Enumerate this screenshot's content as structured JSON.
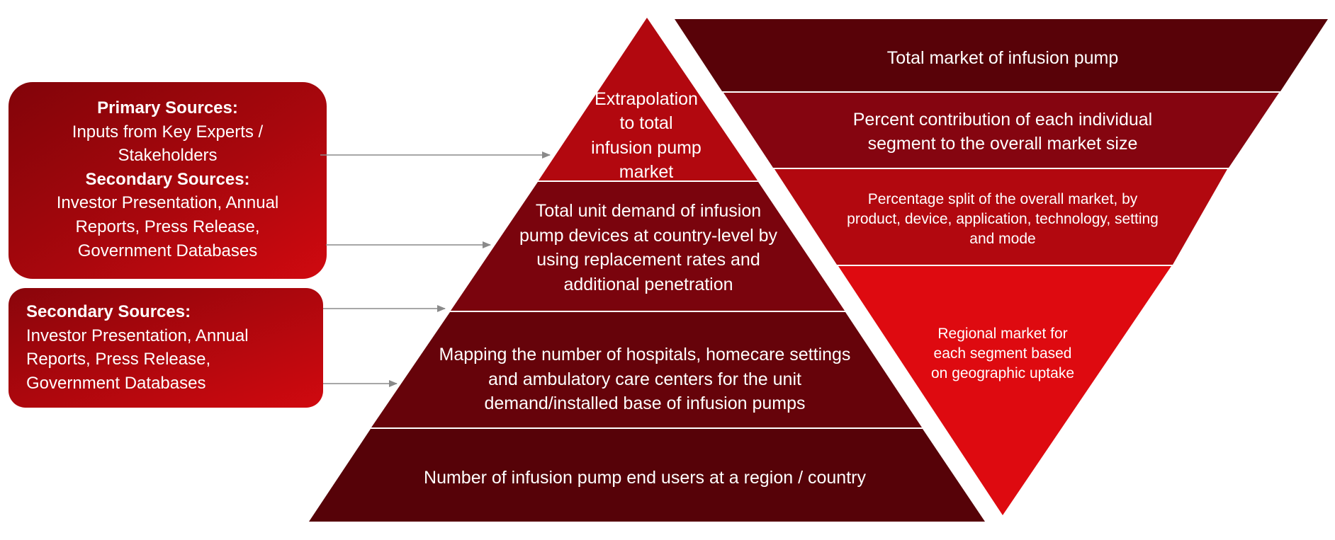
{
  "colors": {
    "dark": "#5a0308",
    "mid": "#7e0510",
    "bright": "#b5080f",
    "vivid": "#de0a10",
    "arrow": "#8a8a8a"
  },
  "left_boxes": {
    "box1": {
      "primary_title": "Primary Sources:",
      "primary_lines": [
        "Inputs from Key Experts /",
        "Stakeholders"
      ],
      "secondary_title": "Secondary Sources:",
      "secondary_lines": [
        "Investor Presentation, Annual",
        "Reports, Press Release,",
        "Government Databases"
      ]
    },
    "box2": {
      "secondary_title": "Secondary Sources:",
      "secondary_lines": [
        "Investor Presentation, Annual",
        "Reports, Press Release,",
        "Government Databases"
      ]
    }
  },
  "pyramid": {
    "tier1": [
      "Extrapolation",
      "to total",
      "infusion pump",
      "market"
    ],
    "tier2": [
      "Total unit demand of infusion",
      "pump devices at country-level by",
      "using replacement rates and",
      "additional penetration"
    ],
    "tier3": [
      "Mapping the number of hospitals, homecare settings",
      "and ambulatory care centers for the unit",
      "demand/installed base of infusion pumps"
    ],
    "tier4": [
      "Number of infusion pump end users at a region / country"
    ]
  },
  "inverted": {
    "tier1": [
      "Total market of infusion pump"
    ],
    "tier2": [
      "Percent contribution of each individual",
      "segment to the overall market size"
    ],
    "tier3": [
      "Percentage split of the overall market, by",
      "product, device, application, technology, setting",
      "and mode"
    ],
    "tier4": [
      "Regional market for",
      "each segment based",
      "on geographic uptake"
    ]
  }
}
